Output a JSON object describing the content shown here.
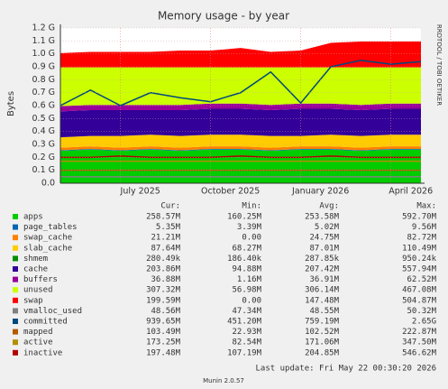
{
  "chart_data": {
    "type": "area",
    "title": "Memory usage - by year",
    "y_label": "Bytes",
    "watermark": "RRDTOOL / TOBI OETIKER",
    "last_update": "Last update: Fri May 22 00:30:20 2026",
    "footer": "Munin 2.0.57",
    "grid": true,
    "x": [
      "2025-05",
      "2025-06",
      "2025-07",
      "2025-08",
      "2025-09",
      "2025-10",
      "2025-11",
      "2025-12",
      "2026-01",
      "2026-02",
      "2026-03",
      "2026-04",
      "2026-05"
    ],
    "xlim": [
      "2025-05",
      "2026-05"
    ],
    "xticks": [
      {
        "value": "2025-07",
        "label": "July 2025"
      },
      {
        "value": "2025-10",
        "label": "October 2025"
      },
      {
        "value": "2026-01",
        "label": "January 2026"
      },
      {
        "value": "2026-04",
        "label": "April 2026"
      }
    ],
    "ylim": [
      0,
      1.2
    ],
    "yticks": [
      {
        "value": 0,
        "label": "0.0"
      },
      {
        "value": 0.1,
        "label": "0.1 G"
      },
      {
        "value": 0.2,
        "label": "0.2 G"
      },
      {
        "value": 0.3,
        "label": "0.3 G"
      },
      {
        "value": 0.4,
        "label": "0.4 G"
      },
      {
        "value": 0.5,
        "label": "0.5 G"
      },
      {
        "value": 0.6,
        "label": "0.6 G"
      },
      {
        "value": 0.7,
        "label": "0.7 G"
      },
      {
        "value": 0.8,
        "label": "0.8 G"
      },
      {
        "value": 0.9,
        "label": "0.9 G"
      },
      {
        "value": 1.0,
        "label": "1.0 G"
      },
      {
        "value": 1.1,
        "label": "1.1 G"
      },
      {
        "value": 1.2,
        "label": "1.2 G"
      }
    ],
    "legend_columns": [
      "Cur:",
      "Min:",
      "Avg:",
      "Max:"
    ],
    "series": [
      {
        "name": "apps",
        "color": "#00cc00",
        "style": "area",
        "values": [
          0.25,
          0.26,
          0.25,
          0.26,
          0.25,
          0.26,
          0.26,
          0.25,
          0.26,
          0.26,
          0.25,
          0.26,
          0.26
        ],
        "stats": [
          "258.57M",
          "160.25M",
          "253.58M",
          "592.70M"
        ]
      },
      {
        "name": "page_tables",
        "color": "#0066b3",
        "style": "area",
        "values": [
          0.005,
          0.005,
          0.005,
          0.005,
          0.005,
          0.005,
          0.005,
          0.005,
          0.005,
          0.005,
          0.005,
          0.005,
          0.005
        ],
        "stats": [
          "5.35M",
          "3.39M",
          "5.02M",
          "9.56M"
        ]
      },
      {
        "name": "swap_cache",
        "color": "#ff8000",
        "style": "area",
        "values": [
          0.02,
          0.02,
          0.02,
          0.02,
          0.02,
          0.02,
          0.02,
          0.02,
          0.02,
          0.02,
          0.02,
          0.02,
          0.02
        ],
        "stats": [
          "21.21M",
          "0.00",
          "24.75M",
          "82.72M"
        ]
      },
      {
        "name": "slab_cache",
        "color": "#ffcc00",
        "style": "area",
        "values": [
          0.08,
          0.08,
          0.09,
          0.09,
          0.09,
          0.09,
          0.09,
          0.09,
          0.08,
          0.09,
          0.09,
          0.09,
          0.09
        ],
        "stats": [
          "87.64M",
          "68.27M",
          "87.01M",
          "110.49M"
        ]
      },
      {
        "name": "shmem",
        "color": "#008f00",
        "style": "area",
        "values": [
          0.0003,
          0.0003,
          0.0003,
          0.0003,
          0.0003,
          0.0003,
          0.0003,
          0.0003,
          0.0003,
          0.0003,
          0.0003,
          0.0003,
          0.0003
        ],
        "stats": [
          "280.49k",
          "186.40k",
          "287.85k",
          "950.24k"
        ]
      },
      {
        "name": "cache",
        "color": "#330099",
        "style": "area",
        "values": [
          0.2,
          0.2,
          0.2,
          0.19,
          0.2,
          0.2,
          0.2,
          0.2,
          0.21,
          0.2,
          0.2,
          0.2,
          0.2
        ],
        "stats": [
          "203.86M",
          "94.88M",
          "207.42M",
          "557.94M"
        ]
      },
      {
        "name": "buffers",
        "color": "#990099",
        "style": "area",
        "values": [
          0.04,
          0.04,
          0.04,
          0.04,
          0.04,
          0.04,
          0.04,
          0.04,
          0.04,
          0.04,
          0.04,
          0.04,
          0.04
        ],
        "stats": [
          "36.88M",
          "1.16M",
          "36.91M",
          "62.52M"
        ]
      },
      {
        "name": "unused",
        "color": "#ccff00",
        "style": "area",
        "values": [
          0.3,
          0.29,
          0.29,
          0.29,
          0.29,
          0.28,
          0.28,
          0.29,
          0.28,
          0.28,
          0.29,
          0.28,
          0.28
        ],
        "stats": [
          "307.32M",
          "56.98M",
          "306.14M",
          "467.08M"
        ]
      },
      {
        "name": "swap",
        "color": "#ff0000",
        "style": "area",
        "values": [
          0.11,
          0.12,
          0.12,
          0.12,
          0.13,
          0.13,
          0.15,
          0.12,
          0.13,
          0.19,
          0.2,
          0.2,
          0.2
        ],
        "stats": [
          "199.59M",
          "0.00",
          "147.48M",
          "504.87M"
        ]
      },
      {
        "name": "vmalloc_used",
        "color": "#808080",
        "style": "line",
        "values": [
          0.05,
          0.05,
          0.05,
          0.05,
          0.05,
          0.05,
          0.05,
          0.05,
          0.05,
          0.05,
          0.05,
          0.05,
          0.05
        ],
        "stats": [
          "48.56M",
          "47.34M",
          "48.55M",
          "50.32M"
        ]
      },
      {
        "name": "committed",
        "color": "#00487d",
        "style": "line",
        "values": [
          0.6,
          0.72,
          0.6,
          0.7,
          0.66,
          0.63,
          0.7,
          0.86,
          0.62,
          0.9,
          0.95,
          0.92,
          0.94
        ],
        "stats": [
          "939.65M",
          "451.20M",
          "759.19M",
          "2.65G"
        ]
      },
      {
        "name": "mapped",
        "color": "#b35a00",
        "style": "line",
        "values": [
          0.1,
          0.1,
          0.1,
          0.1,
          0.1,
          0.1,
          0.1,
          0.1,
          0.1,
          0.1,
          0.1,
          0.1,
          0.1
        ],
        "stats": [
          "103.49M",
          "22.93M",
          "102.52M",
          "222.87M"
        ]
      },
      {
        "name": "active",
        "color": "#b38f00",
        "style": "line",
        "values": [
          0.17,
          0.17,
          0.17,
          0.17,
          0.17,
          0.17,
          0.17,
          0.17,
          0.17,
          0.17,
          0.17,
          0.17,
          0.17
        ],
        "stats": [
          "173.25M",
          "82.54M",
          "171.06M",
          "347.50M"
        ]
      },
      {
        "name": "inactive",
        "color": "#b30000",
        "style": "line",
        "values": [
          0.2,
          0.2,
          0.21,
          0.2,
          0.2,
          0.2,
          0.21,
          0.2,
          0.2,
          0.21,
          0.2,
          0.2,
          0.2
        ],
        "stats": [
          "197.48M",
          "107.19M",
          "204.85M",
          "546.62M"
        ]
      }
    ]
  }
}
